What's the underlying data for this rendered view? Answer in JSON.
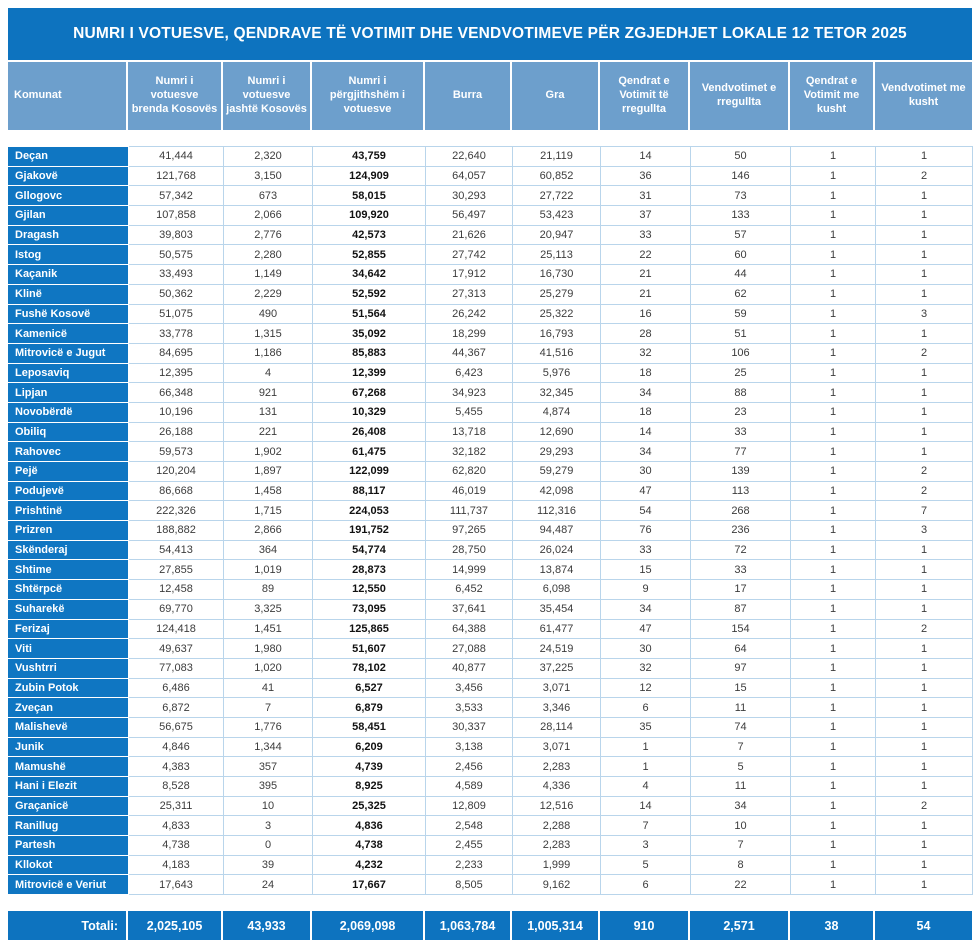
{
  "title": "NUMRI I VOTUESVE, QENDRAVE TË VOTIMIT DHE VENDVOTIMEVE PËR ZGJEDHJET LOKALE 12 TETOR 2025",
  "colors": {
    "primary_blue": "#0d73bf",
    "name_column_blue": "#0f76c2",
    "header_blue": "#6d9fcc",
    "cell_border_blue": "#b9d5eb",
    "text_dark": "#3c3c3c",
    "text_white": "#ffffff"
  },
  "table": {
    "columns": [
      "Komunat",
      "Numri i votuesve brenda Kosovës",
      "Numri i votuesve jashtë Kosovës",
      "Numri i përgjithshëm i votuesve",
      "Burra",
      "Gra",
      "Qendrat e Votimit të rregullta",
      "Vendvotimet e rregullta",
      "Qendrat e Votimit me kusht",
      "Vendvotimet me kusht"
    ],
    "rows": [
      [
        "Deçan",
        "41,444",
        "2,320",
        "43,759",
        "22,640",
        "21,119",
        "14",
        "50",
        "1",
        "1"
      ],
      [
        "Gjakovë",
        "121,768",
        "3,150",
        "124,909",
        "64,057",
        "60,852",
        "36",
        "146",
        "1",
        "2"
      ],
      [
        "Gllogovc",
        "57,342",
        "673",
        "58,015",
        "30,293",
        "27,722",
        "31",
        "73",
        "1",
        "1"
      ],
      [
        "Gjilan",
        "107,858",
        "2,066",
        "109,920",
        "56,497",
        "53,423",
        "37",
        "133",
        "1",
        "1"
      ],
      [
        "Dragash",
        "39,803",
        "2,776",
        "42,573",
        "21,626",
        "20,947",
        "33",
        "57",
        "1",
        "1"
      ],
      [
        "Istog",
        "50,575",
        "2,280",
        "52,855",
        "27,742",
        "25,113",
        "22",
        "60",
        "1",
        "1"
      ],
      [
        "Kaçanik",
        "33,493",
        "1,149",
        "34,642",
        "17,912",
        "16,730",
        "21",
        "44",
        "1",
        "1"
      ],
      [
        "Klinë",
        "50,362",
        "2,229",
        "52,592",
        "27,313",
        "25,279",
        "21",
        "62",
        "1",
        "1"
      ],
      [
        "Fushë Kosovë",
        "51,075",
        "490",
        "51,564",
        "26,242",
        "25,322",
        "16",
        "59",
        "1",
        "3"
      ],
      [
        "Kamenicë",
        "33,778",
        "1,315",
        "35,092",
        "18,299",
        "16,793",
        "28",
        "51",
        "1",
        "1"
      ],
      [
        "Mitrovicë e Jugut",
        "84,695",
        "1,186",
        "85,883",
        "44,367",
        "41,516",
        "32",
        "106",
        "1",
        "2"
      ],
      [
        "Leposaviq",
        "12,395",
        "4",
        "12,399",
        "6,423",
        "5,976",
        "18",
        "25",
        "1",
        "1"
      ],
      [
        "Lipjan",
        "66,348",
        "921",
        "67,268",
        "34,923",
        "32,345",
        "34",
        "88",
        "1",
        "1"
      ],
      [
        "Novobërdë",
        "10,196",
        "131",
        "10,329",
        "5,455",
        "4,874",
        "18",
        "23",
        "1",
        "1"
      ],
      [
        "Obiliq",
        "26,188",
        "221",
        "26,408",
        "13,718",
        "12,690",
        "14",
        "33",
        "1",
        "1"
      ],
      [
        "Rahovec",
        "59,573",
        "1,902",
        "61,475",
        "32,182",
        "29,293",
        "34",
        "77",
        "1",
        "1"
      ],
      [
        "Pejë",
        "120,204",
        "1,897",
        "122,099",
        "62,820",
        "59,279",
        "30",
        "139",
        "1",
        "2"
      ],
      [
        "Podujevë",
        "86,668",
        "1,458",
        "88,117",
        "46,019",
        "42,098",
        "47",
        "113",
        "1",
        "2"
      ],
      [
        "Prishtinë",
        "222,326",
        "1,715",
        "224,053",
        "111,737",
        "112,316",
        "54",
        "268",
        "1",
        "7"
      ],
      [
        "Prizren",
        "188,882",
        "2,866",
        "191,752",
        "97,265",
        "94,487",
        "76",
        "236",
        "1",
        "3"
      ],
      [
        "Skënderaj",
        "54,413",
        "364",
        "54,774",
        "28,750",
        "26,024",
        "33",
        "72",
        "1",
        "1"
      ],
      [
        "Shtime",
        "27,855",
        "1,019",
        "28,873",
        "14,999",
        "13,874",
        "15",
        "33",
        "1",
        "1"
      ],
      [
        "Shtërpcë",
        "12,458",
        "89",
        "12,550",
        "6,452",
        "6,098",
        "9",
        "17",
        "1",
        "1"
      ],
      [
        "Suharekë",
        "69,770",
        "3,325",
        "73,095",
        "37,641",
        "35,454",
        "34",
        "87",
        "1",
        "1"
      ],
      [
        "Ferizaj",
        "124,418",
        "1,451",
        "125,865",
        "64,388",
        "61,477",
        "47",
        "154",
        "1",
        "2"
      ],
      [
        "Viti",
        "49,637",
        "1,980",
        "51,607",
        "27,088",
        "24,519",
        "30",
        "64",
        "1",
        "1"
      ],
      [
        "Vushtrri",
        "77,083",
        "1,020",
        "78,102",
        "40,877",
        "37,225",
        "32",
        "97",
        "1",
        "1"
      ],
      [
        "Zubin Potok",
        "6,486",
        "41",
        "6,527",
        "3,456",
        "3,071",
        "12",
        "15",
        "1",
        "1"
      ],
      [
        "Zveçan",
        "6,872",
        "7",
        "6,879",
        "3,533",
        "3,346",
        "6",
        "11",
        "1",
        "1"
      ],
      [
        "Malishevë",
        "56,675",
        "1,776",
        "58,451",
        "30,337",
        "28,114",
        "35",
        "74",
        "1",
        "1"
      ],
      [
        "Junik",
        "4,846",
        "1,344",
        "6,209",
        "3,138",
        "3,071",
        "1",
        "7",
        "1",
        "1"
      ],
      [
        "Mamushë",
        "4,383",
        "357",
        "4,739",
        "2,456",
        "2,283",
        "1",
        "5",
        "1",
        "1"
      ],
      [
        "Hani i Elezit",
        "8,528",
        "395",
        "8,925",
        "4,589",
        "4,336",
        "4",
        "11",
        "1",
        "1"
      ],
      [
        "Graçanicë",
        "25,311",
        "10",
        "25,325",
        "12,809",
        "12,516",
        "14",
        "34",
        "1",
        "2"
      ],
      [
        "Ranillug",
        "4,833",
        "3",
        "4,836",
        "2,548",
        "2,288",
        "7",
        "10",
        "1",
        "1"
      ],
      [
        "Partesh",
        "4,738",
        "0",
        "4,738",
        "2,455",
        "2,283",
        "3",
        "7",
        "1",
        "1"
      ],
      [
        "Kllokot",
        "4,183",
        "39",
        "4,232",
        "2,233",
        "1,999",
        "5",
        "8",
        "1",
        "1"
      ],
      [
        "Mitrovicë e Veriut",
        "17,643",
        "24",
        "17,667",
        "8,505",
        "9,162",
        "6",
        "22",
        "1",
        "1"
      ]
    ],
    "total_row": {
      "label": "Totali:",
      "values": [
        "2,025,105",
        "43,933",
        "2,069,098",
        "1,063,784",
        "1,005,314",
        "910",
        "2,571",
        "38",
        "54"
      ]
    }
  }
}
